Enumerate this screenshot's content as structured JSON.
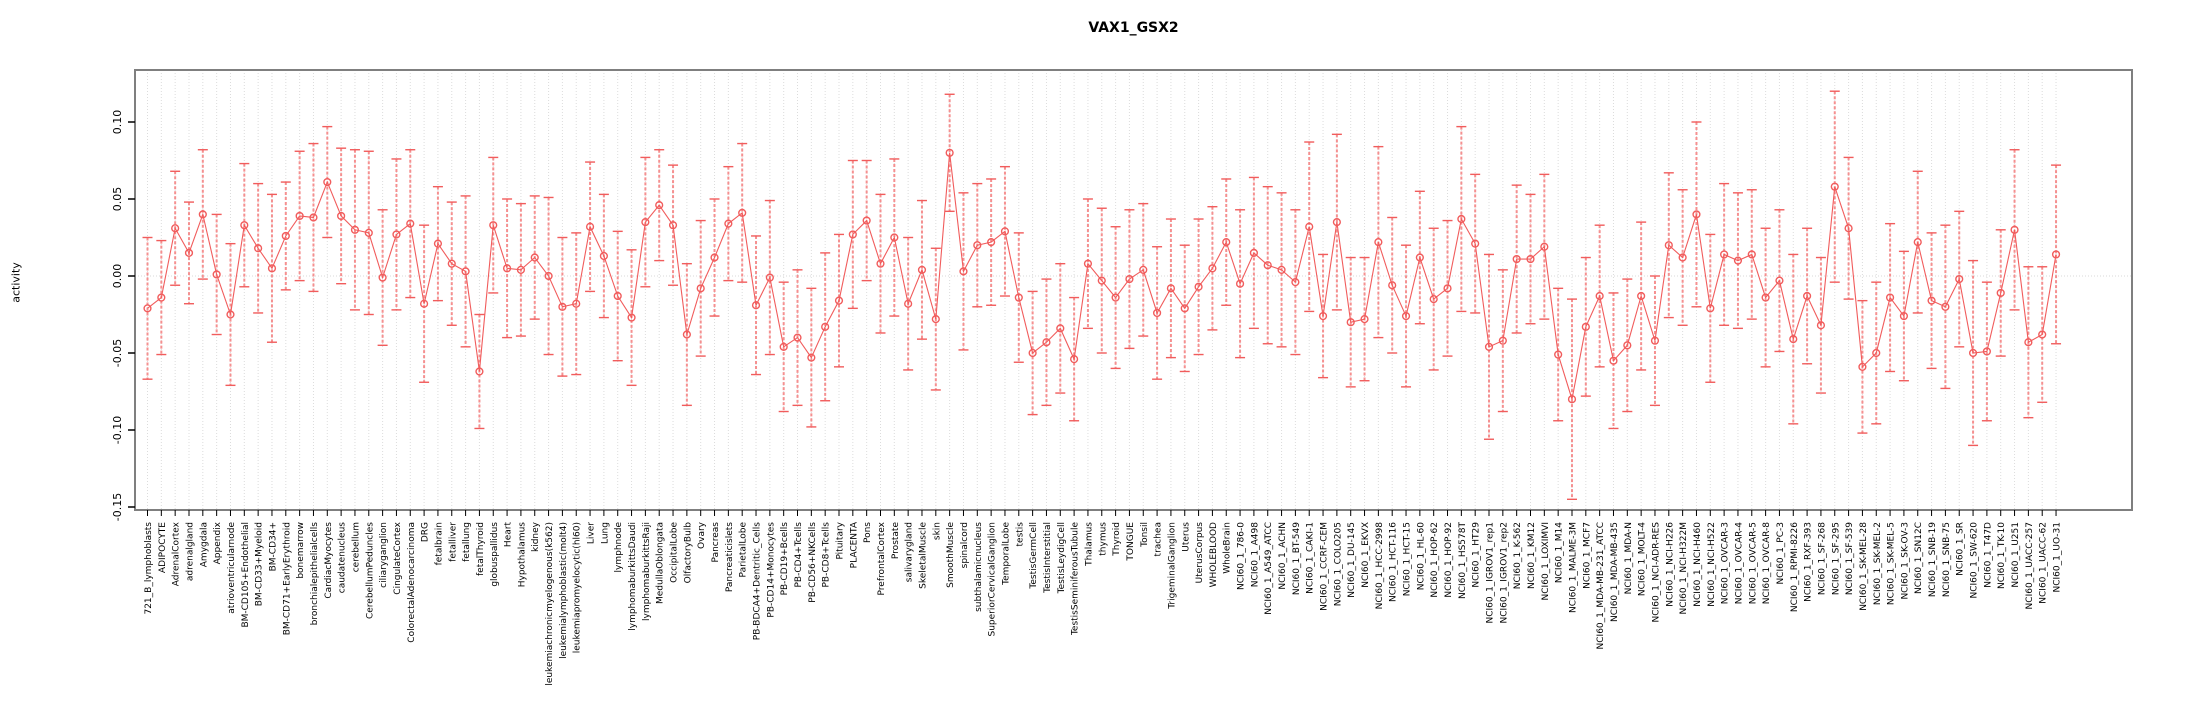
{
  "title": "VAX1_GSX2",
  "ylabel": "activity",
  "colors": {
    "series": "#f15c5c",
    "whisker": "#f59090",
    "grid": "#dcdcdc",
    "zero_line": "#d8d8d8",
    "box_border": "#7f7f7f",
    "tick": "#000000",
    "text": "#000000"
  },
  "chart_data": {
    "type": "line",
    "subtype": "points-with-error-bars",
    "title": "VAX1_GSX2",
    "xlabel": "",
    "ylabel": "activity",
    "ylim": [
      -0.155,
      0.133
    ],
    "yticks": [
      0.1,
      0.05,
      0.0,
      -0.05,
      -0.1,
      -0.15
    ],
    "ytick_labels": [
      "0.10",
      "0.05",
      "0.00",
      "-0.05",
      "-0.10",
      "-0.15"
    ],
    "grid": "vertical dotted gridline per category; dotted horizontal line at y=0",
    "legend": "none",
    "marker": "open-circle",
    "categories": [
      "721_B_lymphoblasts",
      "ADIPOCYTE",
      "AdrenalCortex",
      "adrenalgland",
      "Amygdala",
      "Appendix",
      "atrioventricularnode",
      "BM-CD105+Endothelial",
      "BM-CD33+Myeloid",
      "BM-CD34+",
      "BM-CD71+EarlyErythroid",
      "bonemarrow",
      "bronchialepithelialcells",
      "CardiacMyocytes",
      "caudatenucleus",
      "cerebellum",
      "CerebellumPeduncles",
      "ciliaryganglion",
      "CingulateCortex",
      "ColorectalAdenocarcinoma",
      "DRG",
      "fetalbrain",
      "fetalliver",
      "fetallung",
      "fetalThyroid",
      "globuspallidus",
      "Heart",
      "Hypothalamus",
      "kidney",
      "leukemiachronicmyelogenous(k562)",
      "leukemialymphoblastic(molt4)",
      "leukemiapromyelocytic(hl60)",
      "Liver",
      "Lung",
      "lymphnode",
      "lymphomaburkittsDaudi",
      "lymphomaburkittsRaji",
      "MedullaOblongata",
      "OccipitalLobe",
      "OlfactoryBulb",
      "Ovary",
      "Pancreas",
      "Pancreaticislets",
      "ParietalLobe",
      "PB-BDCA4+Dentritic_Cells",
      "PB-CD14+Monocytes",
      "PB-CD19+Bcells",
      "PB-CD4+Tcells",
      "PB-CD56+NKCells",
      "PB-CD8+Tcells",
      "Pituitary",
      "PLACENTA",
      "Pons",
      "PrefrontalCortex",
      "Prostate",
      "salivarygland",
      "SkeletalMuscle",
      "skin",
      "SmoothMuscle",
      "spinalcord",
      "subthalamicnucleus",
      "SuperiorCervicalGanglion",
      "TemporalLobe",
      "testis",
      "TestisGermCell",
      "TestisInterstitial",
      "TestisLeydigCell",
      "TestisSeminiferousTubule",
      "Thalamus",
      "thymus",
      "Thyroid",
      "TONGUE",
      "Tonsil",
      "trachea",
      "TrigeminalGanglion",
      "Uterus",
      "UterusCorpus",
      "WHOLEBLOOD",
      "WholeBrain",
      "NCI60_1_786-0",
      "NCI60_1_A498",
      "NCI60_1_A549_ATCC",
      "NCI60_1_ACHN",
      "NCI60_1_BT-549",
      "NCI60_1_CAKI-1",
      "NCI60_1_CCRF-CEM",
      "NCI60_1_COLO205",
      "NCI60_1_DU-145",
      "NCI60_1_EKVX",
      "NCI60_1_HCC-2998",
      "NCI60_1_HCT-116",
      "NCI60_1_HCT-15",
      "NCI60_1_HL-60",
      "NCI60_1_HOP-62",
      "NCI60_1_HOP-92",
      "NCI60_1_HS578T",
      "NCI60_1_HT29",
      "NCI60_1_IGROV1_rep1",
      "NCI60_1_IGROV1_rep2",
      "NCI60_1_K-562",
      "NCI60_1_KM12",
      "NCI60_1_LOXIMVI",
      "NCI60_1_M14",
      "NCI60_1_MALME-3M",
      "NCI60_1_MCF7",
      "NCI60_1_MDA-MB-231_ATCC",
      "NCI60_1_MDA-MB-435",
      "NCI60_1_MDA-N",
      "NCI60_1_MOLT-4",
      "NCI60_1_NCI-ADR-RES",
      "NCI60_1_NCI-H226",
      "NCI60_1_NCI-H322M",
      "NCI60_1_NCI-H460",
      "NCI60_1_NCI-H522",
      "NCI60_1_OVCAR-3",
      "NCI60_1_OVCAR-4",
      "NCI60_1_OVCAR-5",
      "NCI60_1_OVCAR-8",
      "NCI60_1_PC-3",
      "NCI60_1_RPMI-8226",
      "NCI60_1_RXF-393",
      "NCI60_1_SF-268",
      "NCI60_1_SF-295",
      "NCI60_1_SF-539",
      "NCI60_1_SK-MEL-28",
      "NCI60_1_SK-MEL-2",
      "NCI60_1_SK-MEL-5",
      "NCI60_1_SK-OV-3",
      "NCI60_1_SN12C",
      "NCI60_1_SNB-19",
      "NCI60_1_SNB-75",
      "NCI60_1_SR",
      "NCI60_1_SW-620",
      "NCI60_1_T47D",
      "NCI60_1_TK-10",
      "NCI60_1_U251",
      "NCI60_1_UACC-257",
      "NCI60_1_UACC-62",
      "NCI60_1_UO-31"
    ],
    "values": [
      -0.021,
      -0.014,
      0.031,
      0.015,
      0.04,
      0.001,
      -0.025,
      0.033,
      0.018,
      0.005,
      0.026,
      0.039,
      0.038,
      0.061,
      0.039,
      0.03,
      0.028,
      -0.001,
      0.027,
      0.034,
      -0.018,
      0.021,
      0.008,
      0.003,
      -0.062,
      0.033,
      0.005,
      0.004,
      0.012,
      0.0,
      -0.02,
      -0.018,
      0.032,
      0.013,
      -0.013,
      -0.027,
      0.035,
      0.046,
      0.033,
      -0.038,
      -0.008,
      0.012,
      0.034,
      0.041,
      -0.019,
      -0.001,
      -0.046,
      -0.04,
      -0.053,
      -0.033,
      -0.016,
      0.027,
      0.036,
      0.008,
      0.025,
      -0.018,
      0.004,
      -0.028,
      0.08,
      0.003,
      0.02,
      0.022,
      0.029,
      -0.014,
      -0.05,
      -0.043,
      -0.034,
      -0.054,
      0.008,
      -0.003,
      -0.014,
      -0.002,
      0.004,
      -0.024,
      -0.008,
      -0.021,
      -0.007,
      0.005,
      0.022,
      -0.005,
      0.015,
      0.007,
      0.004,
      -0.004,
      0.032,
      -0.026,
      0.035,
      -0.03,
      -0.028,
      0.022,
      -0.006,
      -0.026,
      0.012,
      -0.015,
      -0.008,
      0.037,
      0.021,
      -0.046,
      -0.042,
      0.011,
      0.011,
      0.019,
      -0.051,
      -0.08,
      -0.033,
      -0.013,
      -0.055,
      -0.045,
      -0.013,
      -0.042,
      0.02,
      0.012,
      0.04,
      -0.021,
      0.014,
      0.01,
      0.014,
      -0.014,
      -0.003,
      -0.041,
      -0.013,
      -0.032,
      0.058,
      0.031,
      -0.059,
      -0.05,
      -0.014,
      -0.026,
      0.022,
      -0.016,
      -0.02,
      -0.002,
      -0.05,
      -0.049,
      -0.011,
      0.03,
      -0.043,
      -0.038,
      0.014
    ],
    "errors": [
      0.046,
      0.037,
      0.037,
      0.033,
      0.042,
      0.039,
      0.046,
      0.04,
      0.042,
      0.048,
      0.035,
      0.042,
      0.048,
      0.036,
      0.044,
      0.052,
      0.053,
      0.044,
      0.049,
      0.048,
      0.051,
      0.037,
      0.04,
      0.049,
      0.037,
      0.044,
      0.045,
      0.043,
      0.04,
      0.051,
      0.045,
      0.046,
      0.042,
      0.04,
      0.042,
      0.044,
      0.042,
      0.036,
      0.039,
      0.046,
      0.044,
      0.038,
      0.037,
      0.045,
      0.045,
      0.05,
      0.042,
      0.044,
      0.045,
      0.048,
      0.043,
      0.048,
      0.039,
      0.045,
      0.051,
      0.043,
      0.045,
      0.046,
      0.038,
      0.051,
      0.04,
      0.041,
      0.042,
      0.042,
      0.04,
      0.041,
      0.042,
      0.04,
      0.042,
      0.047,
      0.046,
      0.045,
      0.043,
      0.043,
      0.045,
      0.041,
      0.044,
      0.04,
      0.041,
      0.048,
      0.049,
      0.051,
      0.05,
      0.047,
      0.055,
      0.04,
      0.057,
      0.042,
      0.04,
      0.062,
      0.044,
      0.046,
      0.043,
      0.046,
      0.044,
      0.06,
      0.045,
      0.06,
      0.046,
      0.048,
      0.042,
      0.047,
      0.043,
      0.065,
      0.045,
      0.046,
      0.044,
      0.043,
      0.048,
      0.042,
      0.047,
      0.044,
      0.06,
      0.048,
      0.046,
      0.044,
      0.042,
      0.045,
      0.046,
      0.055,
      0.044,
      0.044,
      0.062,
      0.046,
      0.043,
      0.046,
      0.048,
      0.042,
      0.046,
      0.044,
      0.053,
      0.044,
      0.06,
      0.045,
      0.041,
      0.052,
      0.049,
      0.044,
      0.058
    ]
  }
}
